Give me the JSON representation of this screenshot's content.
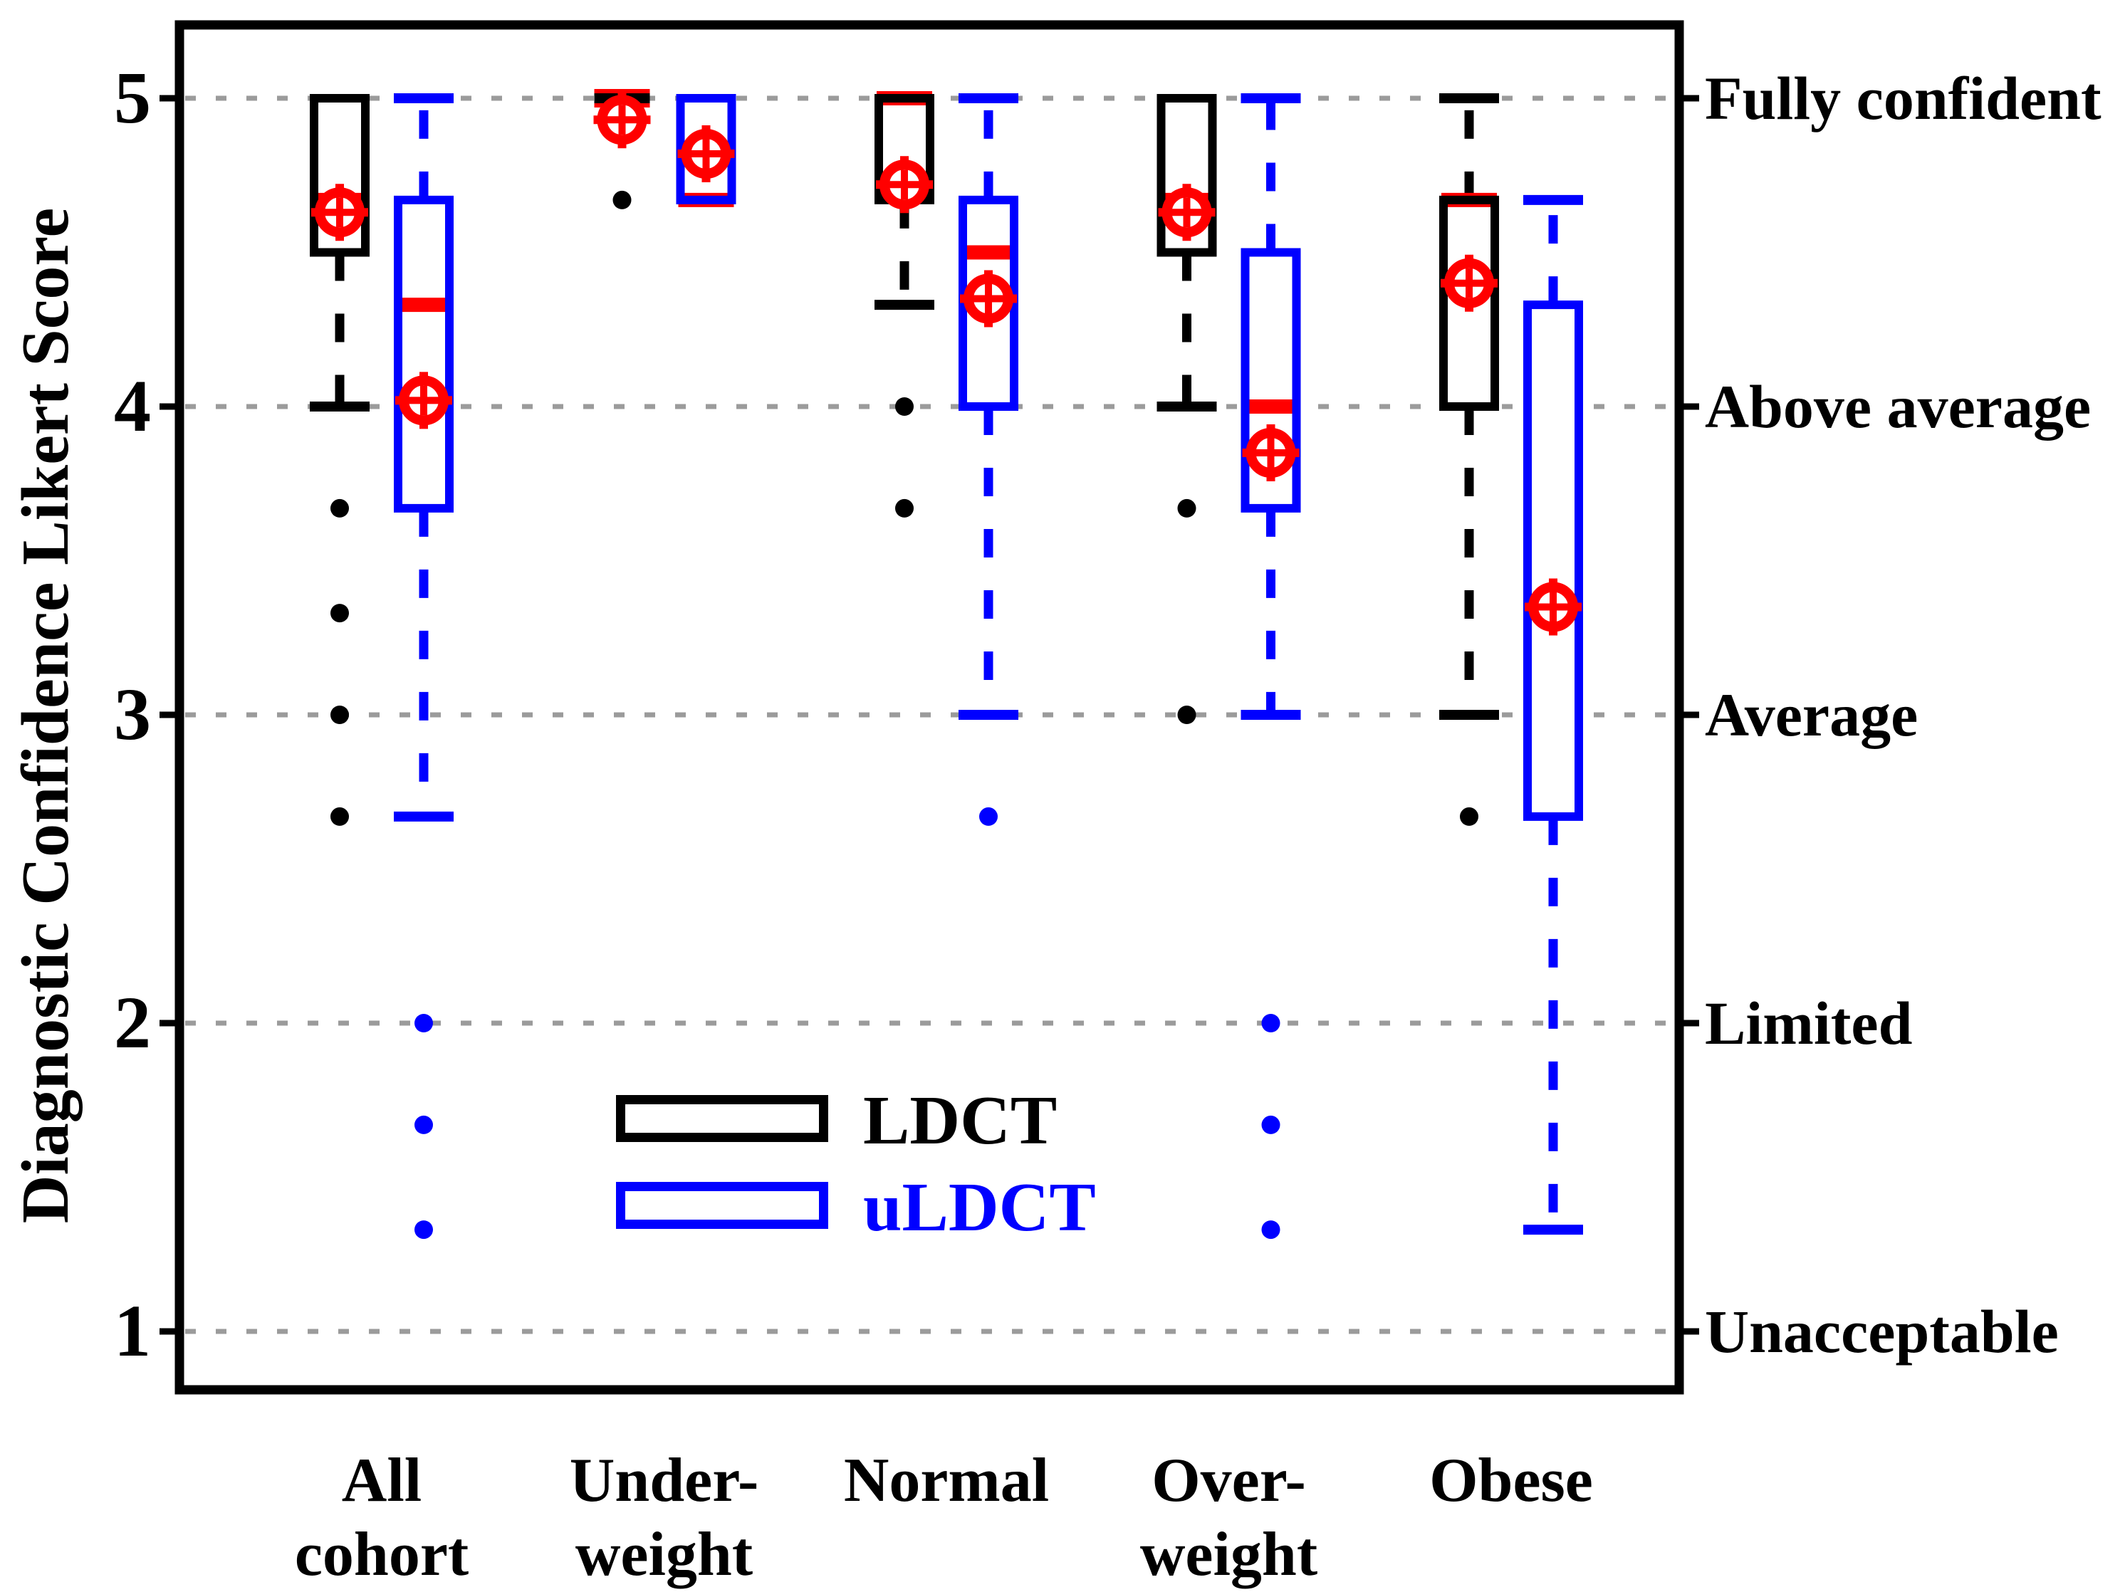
{
  "figure": {
    "background": "#ffffff"
  },
  "chart_data": {
    "type": "boxplot",
    "title": "",
    "xlabel": "",
    "ylabel": "Diagnostic Confidence Likert Score",
    "ylim": [
      0.8,
      5.25
    ],
    "grid": true,
    "gridline_color": "#9b9b9b",
    "axis_color": "#000000",
    "median_color": "#ff0000",
    "mean_marker": {
      "shape": "circle-plus",
      "color": "#ff0000"
    },
    "y_ticks": [
      {
        "value": 5,
        "label": "5",
        "right_label": "Fully confident"
      },
      {
        "value": 4,
        "label": "4",
        "right_label": "Above average"
      },
      {
        "value": 3,
        "label": "3",
        "right_label": "Average"
      },
      {
        "value": 2,
        "label": "2",
        "right_label": "Limited"
      },
      {
        "value": 1,
        "label": "1",
        "right_label": "Unacceptable"
      }
    ],
    "categories": [
      {
        "label": "All cohort",
        "line1": "All",
        "line2": "cohort"
      },
      {
        "label": "Under-weight",
        "line1": "Under-",
        "line2": "weight"
      },
      {
        "label": "Normal",
        "line1": "Normal",
        "line2": ""
      },
      {
        "label": "Over-weight",
        "line1": "Over-",
        "line2": "weight"
      },
      {
        "label": "Obese",
        "line1": "Obese",
        "line2": ""
      }
    ],
    "legend": {
      "position": "lower-center",
      "items": [
        {
          "label": "LDCT",
          "color": "#000000"
        },
        {
          "label": "uLDCT",
          "color": "#0000ff"
        }
      ]
    },
    "series": [
      {
        "name": "LDCT",
        "color": "#000000",
        "boxes": [
          {
            "category": "All cohort",
            "whisker_low": 4.0,
            "q1": 4.5,
            "median": 4.67,
            "q3": 5.0,
            "whisker_high": null,
            "mean": 4.63,
            "outliers": [
              3.67,
              3.33,
              3.0,
              2.67
            ]
          },
          {
            "category": "Under-weight",
            "whisker_low": null,
            "q1": 5.0,
            "median": 5.0,
            "q3": 5.0,
            "whisker_high": null,
            "mean": 4.93,
            "outliers": [
              4.67
            ]
          },
          {
            "category": "Normal",
            "whisker_low": 4.33,
            "q1": 4.67,
            "median": 5.0,
            "q3": 5.0,
            "whisker_high": null,
            "mean": 4.72,
            "outliers": [
              4.0,
              3.67
            ]
          },
          {
            "category": "Over-weight",
            "whisker_low": 4.0,
            "q1": 4.5,
            "median": 4.67,
            "q3": 5.0,
            "whisker_high": null,
            "mean": 4.63,
            "outliers": [
              3.67,
              3.0
            ]
          },
          {
            "category": "Obese",
            "whisker_low": 3.0,
            "q1": 4.0,
            "median": 4.67,
            "q3": 4.67,
            "whisker_high": 5.0,
            "mean": 4.4,
            "outliers": [
              2.67
            ]
          }
        ]
      },
      {
        "name": "uLDCT",
        "color": "#0000ff",
        "boxes": [
          {
            "category": "All cohort",
            "whisker_low": 2.67,
            "q1": 3.67,
            "median": 4.33,
            "q3": 4.67,
            "whisker_high": 5.0,
            "mean": 4.02,
            "outliers": [
              2.0,
              1.67,
              1.33
            ]
          },
          {
            "category": "Under-weight",
            "whisker_low": null,
            "q1": 4.67,
            "median": 4.67,
            "q3": 5.0,
            "whisker_high": null,
            "mean": 4.82,
            "outliers": []
          },
          {
            "category": "Normal",
            "whisker_low": 3.0,
            "q1": 4.0,
            "median": 4.5,
            "q3": 4.67,
            "whisker_high": 5.0,
            "mean": 4.35,
            "outliers": [
              2.67
            ]
          },
          {
            "category": "Over-weight",
            "whisker_low": 3.0,
            "q1": 3.67,
            "median": 4.0,
            "q3": 4.5,
            "whisker_high": 5.0,
            "mean": 3.85,
            "outliers": [
              2.0,
              1.67,
              1.33
            ]
          },
          {
            "category": "Obese",
            "whisker_low": 1.33,
            "q1": 2.67,
            "median": 3.33,
            "q3": 4.33,
            "whisker_high": 4.67,
            "mean": 3.35,
            "outliers": []
          }
        ]
      }
    ]
  }
}
